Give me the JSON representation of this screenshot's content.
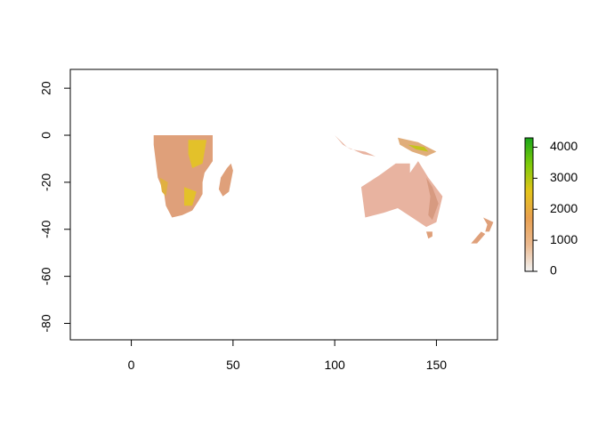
{
  "chart_data": {
    "type": "heatmap",
    "title": "",
    "xlabel": "",
    "ylabel": "",
    "xlim": [
      -30,
      180
    ],
    "ylim": [
      -87,
      28
    ],
    "x_ticks": [
      0,
      50,
      100,
      150
    ],
    "y_ticks": [
      20,
      0,
      -20,
      -40,
      -60,
      -80
    ],
    "x_tick_labels": [
      "0",
      "50",
      "100",
      "150"
    ],
    "y_tick_labels": [
      "20",
      "0",
      "-20",
      "-40",
      "-60",
      "-80"
    ],
    "grid": false,
    "legend": {
      "placement": "right",
      "range": [
        0,
        4300
      ],
      "ticks": [
        0,
        1000,
        2000,
        3000,
        4000
      ],
      "tick_labels": [
        "0",
        "1000",
        "2000",
        "3000",
        "4000"
      ],
      "colors": [
        "#f2f2f2",
        "#ebb98f",
        "#e8a050",
        "#e4c41a",
        "#7ecb0a",
        "#1aa61a"
      ]
    },
    "regions": [
      {
        "name": "southern Africa",
        "fill": "#dfa07a",
        "outline": [
          [
            11,
            0
          ],
          [
            40,
            0
          ],
          [
            40,
            -11
          ],
          [
            36,
            -16
          ],
          [
            35,
            -20
          ],
          [
            35,
            -25
          ],
          [
            33,
            -28
          ],
          [
            30,
            -32
          ],
          [
            25,
            -34
          ],
          [
            20,
            -35
          ],
          [
            17,
            -30
          ],
          [
            16,
            -24
          ],
          [
            13,
            -18
          ],
          [
            12,
            -11
          ],
          [
            11,
            -4
          ],
          [
            11,
            0
          ]
        ]
      },
      {
        "name": "Madagascar",
        "fill": "#dfa07a",
        "outline": [
          [
            49,
            -12
          ],
          [
            50,
            -15
          ],
          [
            48,
            -24
          ],
          [
            45,
            -26
          ],
          [
            43,
            -23
          ],
          [
            44,
            -18
          ],
          [
            47,
            -14
          ],
          [
            49,
            -12
          ]
        ]
      },
      {
        "name": "Australia",
        "fill": "#e8b3a0",
        "outline": [
          [
            113,
            -22
          ],
          [
            122,
            -17
          ],
          [
            130,
            -12
          ],
          [
            137,
            -12
          ],
          [
            137,
            -16
          ],
          [
            141,
            -11
          ],
          [
            146,
            -18
          ],
          [
            153,
            -26
          ],
          [
            150,
            -37
          ],
          [
            145,
            -39
          ],
          [
            138,
            -35
          ],
          [
            131,
            -31
          ],
          [
            124,
            -33
          ],
          [
            115,
            -35
          ],
          [
            113,
            -22
          ]
        ]
      },
      {
        "name": "Tasmania",
        "fill": "#dfa07a",
        "outline": [
          [
            145,
            -41
          ],
          [
            148,
            -41
          ],
          [
            148,
            -43
          ],
          [
            146,
            -44
          ],
          [
            145,
            -41
          ]
        ]
      },
      {
        "name": "New Guinea",
        "fill": "#e0ad7a",
        "outline": [
          [
            131,
            -1
          ],
          [
            141,
            -3
          ],
          [
            150,
            -7
          ],
          [
            145,
            -9
          ],
          [
            138,
            -7
          ],
          [
            132,
            -4
          ],
          [
            131,
            -1
          ]
        ]
      },
      {
        "name": "Indonesia",
        "fill": "#e8b3a0",
        "outline": [
          [
            100,
            0
          ],
          [
            106,
            -5
          ],
          [
            114,
            -8
          ],
          [
            120,
            -9
          ],
          [
            115,
            -7
          ],
          [
            108,
            -6
          ],
          [
            104,
            -4
          ],
          [
            100,
            0
          ]
        ]
      },
      {
        "name": "New Zealand North Island",
        "fill": "#dfa07a",
        "outline": [
          [
            173,
            -35
          ],
          [
            178,
            -37
          ],
          [
            176,
            -41
          ],
          [
            174,
            -41
          ],
          [
            175,
            -38
          ],
          [
            173,
            -35
          ]
        ]
      },
      {
        "name": "New Zealand South Island",
        "fill": "#dfa07a",
        "outline": [
          [
            172,
            -41
          ],
          [
            174,
            -42
          ],
          [
            170,
            -46
          ],
          [
            167,
            -46
          ],
          [
            172,
            -41
          ]
        ]
      }
    ],
    "highlands": [
      {
        "name": "East African plateau",
        "fill": "#e3c12a",
        "outline": [
          [
            28,
            -2
          ],
          [
            37,
            -2
          ],
          [
            35,
            -12
          ],
          [
            30,
            -14
          ],
          [
            28,
            -8
          ],
          [
            28,
            -2
          ]
        ]
      },
      {
        "name": "southern African plateau",
        "fill": "#e3c12a",
        "outline": [
          [
            26,
            -22
          ],
          [
            32,
            -24
          ],
          [
            30,
            -30
          ],
          [
            26,
            -30
          ],
          [
            26,
            -22
          ]
        ]
      },
      {
        "name": "Namibian highlands",
        "fill": "#e0b040",
        "outline": [
          [
            14,
            -18
          ],
          [
            18,
            -20
          ],
          [
            17,
            -26
          ],
          [
            15,
            -24
          ],
          [
            14,
            -18
          ]
        ]
      },
      {
        "name": "New Guinea highlands",
        "fill": "#c3c41a",
        "outline": [
          [
            136,
            -4
          ],
          [
            144,
            -5
          ],
          [
            146,
            -7
          ],
          [
            140,
            -6
          ],
          [
            136,
            -4
          ]
        ]
      },
      {
        "name": "Great Dividing Range",
        "fill": "#d79a80",
        "outline": [
          [
            145,
            -18
          ],
          [
            148,
            -22
          ],
          [
            151,
            -29
          ],
          [
            148,
            -36
          ],
          [
            146,
            -34
          ],
          [
            147,
            -26
          ],
          [
            145,
            -18
          ]
        ]
      }
    ]
  }
}
